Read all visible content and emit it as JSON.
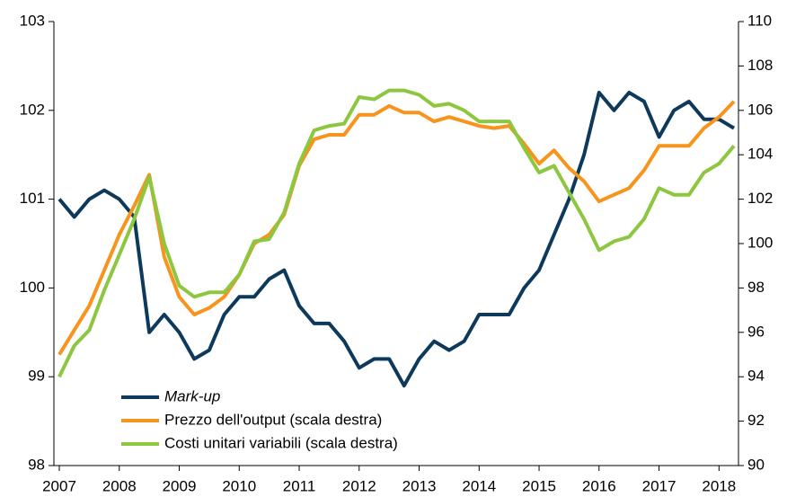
{
  "chart_data": {
    "type": "line",
    "categories": [
      "2007",
      null,
      null,
      null,
      "2008",
      null,
      null,
      null,
      "2009",
      null,
      null,
      null,
      "2010",
      null,
      null,
      null,
      "2011",
      null,
      null,
      null,
      "2012",
      null,
      null,
      null,
      "2013",
      null,
      null,
      null,
      "2014",
      null,
      null,
      null,
      "2015",
      null,
      null,
      null,
      "2016",
      null,
      null,
      null,
      "2017",
      null,
      null,
      null,
      "2018",
      null
    ],
    "ylim": [
      98,
      103
    ],
    "yticks": [
      98,
      99,
      100,
      101,
      102,
      103
    ],
    "y2lim": [
      90,
      110
    ],
    "y2ticks": [
      90,
      92,
      94,
      96,
      98,
      100,
      102,
      104,
      106,
      108,
      110
    ],
    "legend": "lower left",
    "series": [
      {
        "name": "Mark-up",
        "color": "#0d3a5c",
        "values": [
          101.0,
          100.8,
          101.0,
          101.1,
          101.0,
          100.8,
          99.5,
          99.7,
          99.5,
          99.2,
          99.3,
          99.7,
          99.9,
          99.9,
          100.1,
          100.2,
          99.8,
          99.6,
          99.6,
          99.4,
          99.1,
          99.2,
          99.2,
          98.9,
          99.2,
          99.4,
          99.3,
          99.4,
          99.7,
          99.7,
          99.7,
          100.0,
          100.2,
          100.6,
          101.0,
          101.5,
          102.2,
          102.0,
          102.2,
          102.1,
          101.7,
          102.0,
          102.1,
          101.9,
          101.9,
          101.8
        ]
      },
      {
        "name": "Prezzo dell'output (scala destra)",
        "color": "#f7941d",
        "axis": "y2",
        "values": [
          95.0,
          96.1,
          97.2,
          98.8,
          100.4,
          101.7,
          103.1,
          99.4,
          97.6,
          96.8,
          97.1,
          97.6,
          98.6,
          100.0,
          100.4,
          101.3,
          103.5,
          104.7,
          104.9,
          104.9,
          105.8,
          105.8,
          106.2,
          105.9,
          105.9,
          105.5,
          105.7,
          105.5,
          105.3,
          105.2,
          105.3,
          104.5,
          103.6,
          104.2,
          103.4,
          102.8,
          101.9,
          102.2,
          102.5,
          103.3,
          104.4,
          104.4,
          104.4,
          105.2,
          105.7,
          106.4
        ]
      },
      {
        "name": "Costi unitari variabili (scala destra)",
        "color": "#8dc63f",
        "axis": "y2",
        "values": [
          94.0,
          95.4,
          96.1,
          97.9,
          99.5,
          101.1,
          103.0,
          100.0,
          98.1,
          97.6,
          97.8,
          97.8,
          98.6,
          100.1,
          100.2,
          101.4,
          103.6,
          105.1,
          105.3,
          105.4,
          106.6,
          106.5,
          106.9,
          106.9,
          106.7,
          106.2,
          106.3,
          106.0,
          105.5,
          105.5,
          105.5,
          104.3,
          103.2,
          103.5,
          102.3,
          101.1,
          99.7,
          100.1,
          100.3,
          101.1,
          102.5,
          102.2,
          102.2,
          103.2,
          103.6,
          104.4
        ]
      }
    ]
  }
}
